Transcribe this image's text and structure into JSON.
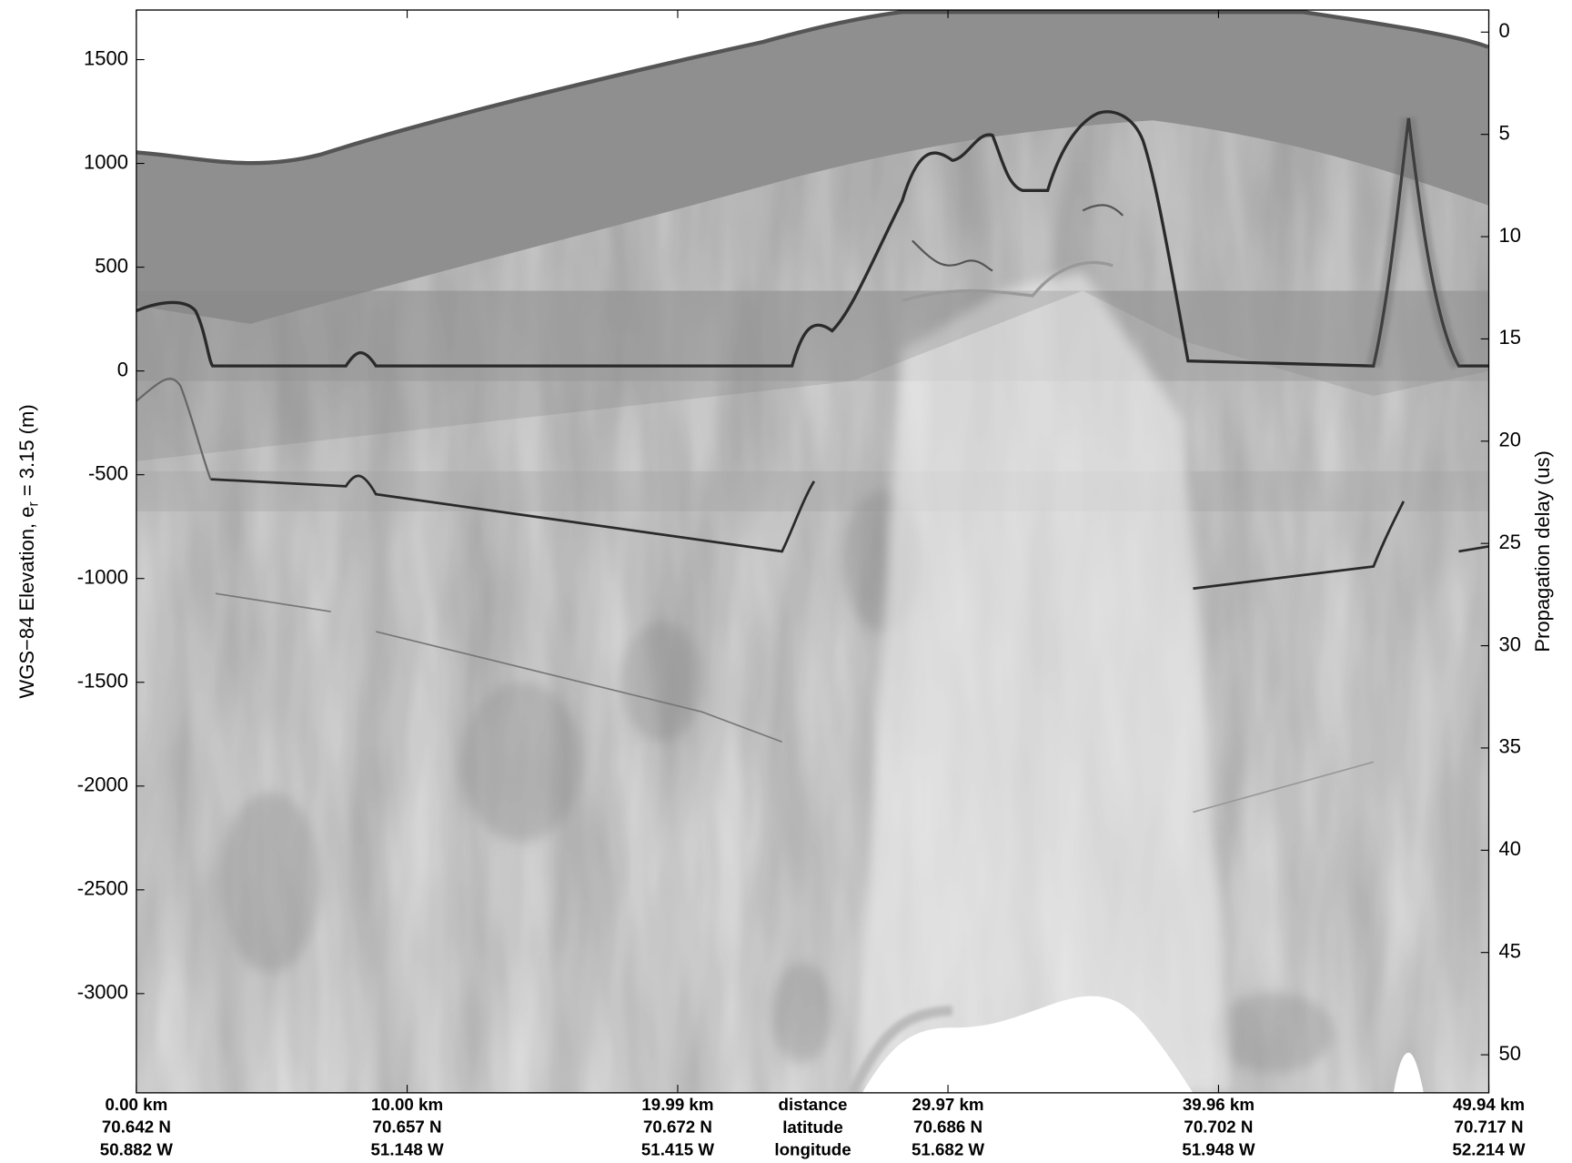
{
  "chart_data": {
    "type": "radargram",
    "ylabel": [
      "WGS−84 Elevation, e",
      "r",
      " = 3.15 (m)"
    ],
    "y2label": "Propagation delay (us)",
    "ylim": [
      -3478,
      1739
    ],
    "yticks": [
      -3000,
      -2500,
      -2000,
      -1500,
      -1000,
      -500,
      0,
      500,
      1000,
      1500
    ],
    "y2lim": [
      -1.08,
      51.86
    ],
    "y2ticks": [
      0,
      5,
      10,
      15,
      20,
      25,
      30,
      35,
      40,
      45,
      50
    ],
    "xlim": [
      0,
      49.94
    ],
    "xticks": [
      {
        "value": 0,
        "label": "0.00 km"
      },
      {
        "value": 10,
        "label": "10.00 km"
      },
      {
        "value": 19.99,
        "label": "19.99 km"
      },
      {
        "value": 29.97,
        "label": "29.97 km"
      },
      {
        "value": 39.96,
        "label": "39.96 km"
      },
      {
        "value": 49.94,
        "label": "49.94 km"
      }
    ],
    "latitude": [
      "70.642 N",
      "70.657 N",
      "70.672 N",
      "70.686 N",
      "70.702 N",
      "70.717 N"
    ],
    "longitude": [
      "50.882 W",
      "51.148 W",
      "51.415 W",
      "51.682 W",
      "51.948 W",
      "52.214 W"
    ],
    "row_labels": [
      "distance",
      "latitude",
      "longitude"
    ],
    "colormap": "gray"
  }
}
